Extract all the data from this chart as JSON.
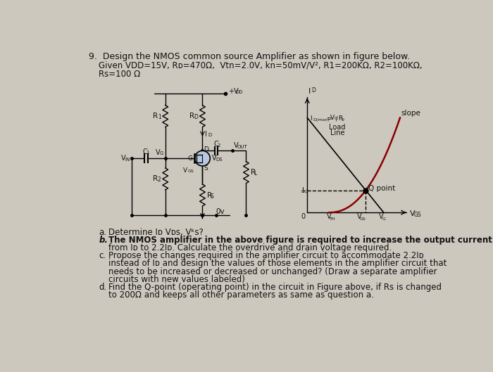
{
  "title": "9.  Design the NMOS common source Amplifier as shown in figure below.",
  "given_line1": "Given VDD=15V, Rᴅ=470Ω,  Vtn=2.0V, kn=50mV/V², R1=200KΩ, R2=100KΩ,",
  "given_line2": "Rs=100 Ω",
  "background_color": "#ccc8be",
  "text_color": "#111111",
  "q_a": "a.   Determine Iᴅ Vᴅs, Vᵏs?",
  "q_b1": "b.   The NMOS amplifier in the above figure is required to increase the output current",
  "q_b2": "      from Iᴅ to 2.2Iᴅ. Calculate the overdrive and drain voltage required.",
  "q_c1": "c.   Propose the changes required in the amplifier circuit to accommodate 2.2Iᴅ",
  "q_c2": "      instead of Iᴅ and design the values of those elements in the amplifier circuit that",
  "q_c3": "      needs to be increased or decreased or unchanged? (Draw a separate amplifier",
  "q_c4": "      circuits with new values labeled)",
  "q_d1": "d.   Find the Q-point (operating point) in the circuit in Figure above, if Rs is changed",
  "q_d2": "      to 200Ω and keeps all other parameters as same as question a."
}
